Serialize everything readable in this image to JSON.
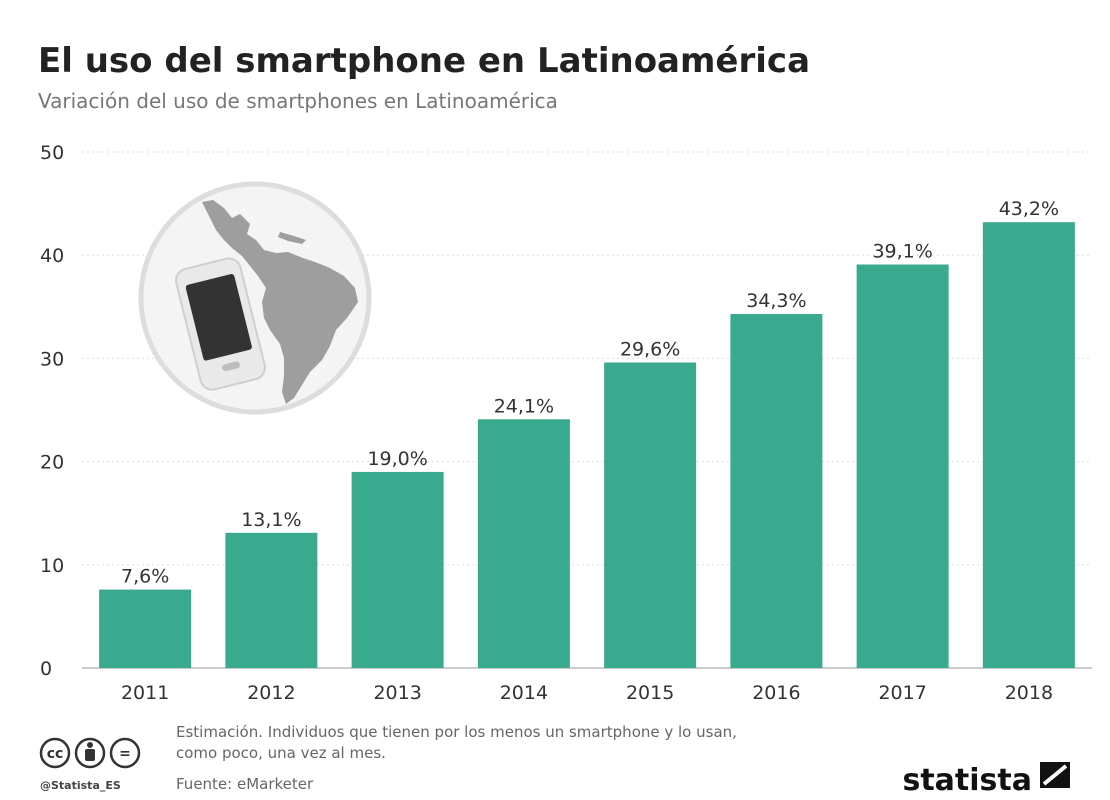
{
  "header": {
    "title": "El uso del smartphone en Latinoamérica",
    "subtitle": "Variación del uso de smartphones en Latinoamérica"
  },
  "chart_data": {
    "type": "bar",
    "categories": [
      "2011",
      "2012",
      "2013",
      "2014",
      "2015",
      "2016",
      "2017",
      "2018"
    ],
    "values": [
      7.6,
      13.1,
      19.0,
      24.1,
      29.6,
      34.3,
      39.1,
      43.2
    ],
    "value_labels": [
      "7,6%",
      "13,1%",
      "19,0%",
      "24,1%",
      "29,6%",
      "34,3%",
      "39,1%",
      "43,2%"
    ],
    "ylim": [
      0,
      50
    ],
    "yticks": [
      0,
      10,
      20,
      30,
      40,
      50
    ],
    "grid": true,
    "bar_color": "#3aaa8e"
  },
  "footer": {
    "note_line1": "Estimación. Individuos que tienen por los menos un smartphone y lo usan,",
    "note_line2": "como poco, una vez al mes.",
    "source": "Fuente: eMarketer",
    "handle": "@Statista_ES",
    "brand": "statista",
    "license_icons": [
      "cc-icon",
      "attribution-icon",
      "no-derivatives-icon"
    ],
    "cc_text": "cc",
    "nd_text": "="
  },
  "illustration": {
    "icons": [
      "globe-icon",
      "smartphone-icon"
    ],
    "circle_color": "#f4f4f4",
    "land_color": "#9e9e9e",
    "phone_screen_color": "#333333"
  }
}
